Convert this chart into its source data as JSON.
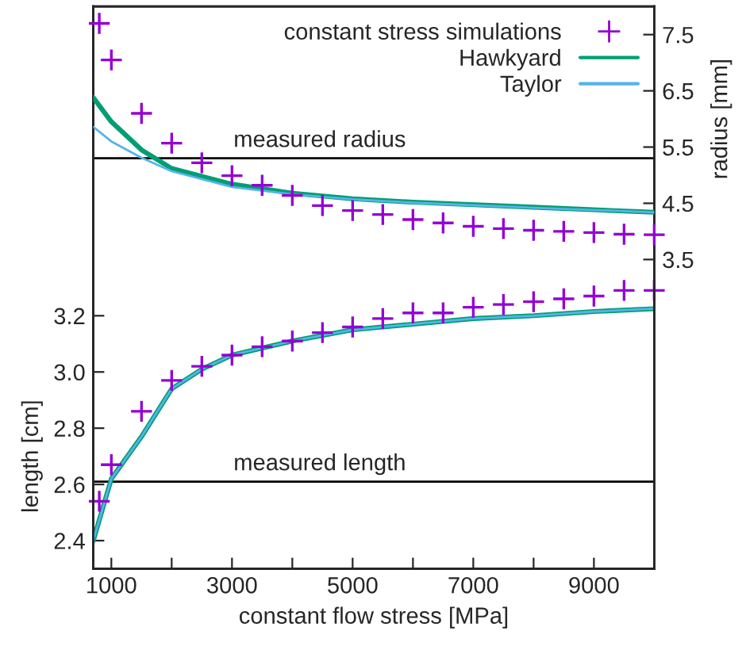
{
  "chart_data": {
    "type": "scatter",
    "xlabel": "constant flow stress [MPa]",
    "ylabel": "length [cm]",
    "y2label": "radius [mm]",
    "xlim": [
      700,
      10000
    ],
    "xticks": [
      1000,
      {
        "value": 2000,
        "label": null
      },
      3000,
      {
        "value": 4000,
        "label": null
      },
      5000,
      {
        "value": 6000,
        "label": null
      },
      7000,
      {
        "value": 8000,
        "label": null
      },
      9000
    ],
    "ylim": [
      2.3,
      4.3
    ],
    "yticks": [
      2.4,
      2.6,
      2.8,
      {
        "value": 3.0,
        "label": "3.0"
      },
      3.2
    ],
    "y2lim": [
      -2,
      8
    ],
    "y2ticks": [
      3.5,
      4.5,
      5.5,
      6.5,
      7.5
    ],
    "grid": false,
    "legend": "top right",
    "ref_lines": [
      {
        "axis": "y2",
        "value": 5.3,
        "label": "measured radius",
        "color": "#000000"
      },
      {
        "axis": "y",
        "value": 2.61,
        "label": "measured length",
        "color": "#000000"
      }
    ],
    "series": [
      {
        "name": "constant stress simulations",
        "marker": "cross",
        "color": "#9400d3",
        "axis": "y2",
        "x": [
          800,
          1000,
          1500,
          2000,
          2500,
          3000,
          3500,
          4000,
          4500,
          5000,
          5500,
          6000,
          6500,
          7000,
          7500,
          8000,
          8500,
          9000,
          9500,
          10000
        ],
        "values": [
          7.7,
          7.05,
          6.1,
          5.57,
          5.22,
          4.99,
          4.82,
          4.64,
          4.46,
          4.37,
          4.3,
          4.21,
          4.15,
          4.09,
          4.05,
          4.02,
          4.0,
          3.98,
          3.95,
          3.94
        ]
      },
      {
        "marker": "cross",
        "color": "#9400d3",
        "axis": "y",
        "x": [
          800,
          1000,
          1500,
          2000,
          2500,
          3000,
          3500,
          4000,
          4500,
          5000,
          5500,
          6000,
          6500,
          7000,
          7500,
          8000,
          8500,
          9000,
          9500,
          10000
        ],
        "values": [
          2.54,
          2.67,
          2.86,
          2.97,
          3.02,
          3.06,
          3.09,
          3.11,
          3.14,
          3.16,
          3.19,
          3.21,
          3.21,
          3.23,
          3.24,
          3.25,
          3.26,
          3.27,
          3.29,
          3.29
        ]
      },
      {
        "name": "Hawkyard",
        "type": "line",
        "color": "#009e73",
        "axis": "y2",
        "x": [
          700,
          1000,
          1500,
          2000,
          3000,
          4000,
          5000,
          6000,
          8000,
          10000
        ],
        "values": [
          6.38,
          5.95,
          5.45,
          5.12,
          4.84,
          4.68,
          4.58,
          4.52,
          4.43,
          4.34
        ]
      },
      {
        "type": "line",
        "color": "#009e73",
        "axis": "y",
        "x": [
          700,
          1000,
          1500,
          2000,
          2500,
          3000,
          4000,
          5000,
          6000,
          7000,
          8000,
          9000,
          10000
        ],
        "values": [
          2.4,
          2.62,
          2.77,
          2.94,
          3.01,
          3.06,
          3.11,
          3.15,
          3.17,
          3.19,
          3.2,
          3.215,
          3.225
        ]
      },
      {
        "name": "Taylor",
        "type": "line",
        "color": "#56b4e9",
        "axis": "y2",
        "x": [
          700,
          1000,
          1500,
          2000,
          3000,
          4000,
          5000,
          6000,
          8000,
          10000
        ],
        "values": [
          5.86,
          5.6,
          5.31,
          5.07,
          4.79,
          4.66,
          4.57,
          4.51,
          4.42,
          4.34
        ]
      },
      {
        "type": "line",
        "color": "#56b4e9",
        "axis": "y",
        "x": [
          700,
          1000,
          1500,
          2000,
          2500,
          3000,
          4000,
          5000,
          6000,
          7000,
          8000,
          9000,
          10000
        ],
        "values": [
          2.4,
          2.62,
          2.77,
          2.94,
          3.01,
          3.06,
          3.11,
          3.15,
          3.17,
          3.19,
          3.2,
          3.215,
          3.225
        ]
      }
    ]
  }
}
